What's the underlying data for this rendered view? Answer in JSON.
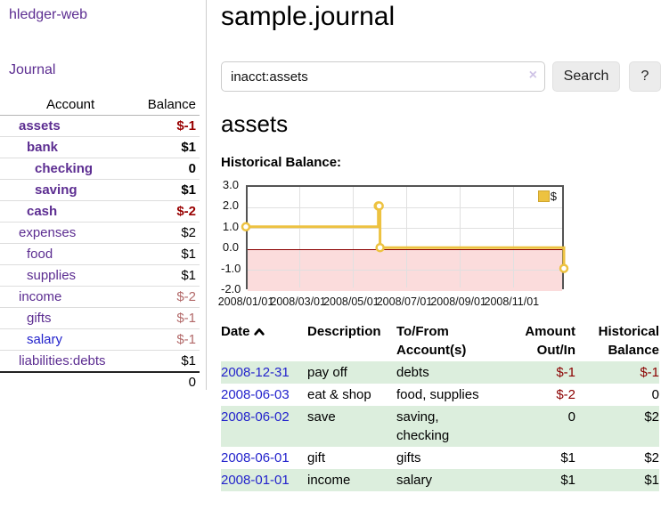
{
  "app": {
    "brand": "hledger-web"
  },
  "sidebar": {
    "journal_label": "Journal",
    "table": {
      "account_header": "Account",
      "balance_header": "Balance",
      "accounts": [
        {
          "name": "assets",
          "level": 1,
          "bold": true,
          "balance": "$-1",
          "balance_style": "neg-strong"
        },
        {
          "name": "bank",
          "level": 2,
          "bold": true,
          "balance": "$1",
          "balance_style": "pos"
        },
        {
          "name": "checking",
          "level": 3,
          "bold": true,
          "balance": "0",
          "balance_style": "pos"
        },
        {
          "name": "saving",
          "level": 3,
          "bold": true,
          "balance": "$1",
          "balance_style": "pos"
        },
        {
          "name": "cash",
          "level": 2,
          "bold": true,
          "balance": "$-2",
          "balance_style": "neg-strong"
        },
        {
          "name": "expenses",
          "level": 1,
          "bold": false,
          "balance": "$2",
          "balance_style": "pos"
        },
        {
          "name": "food",
          "level": 2,
          "bold": false,
          "balance": "$1",
          "balance_style": "pos"
        },
        {
          "name": "supplies",
          "level": 2,
          "bold": false,
          "balance": "$1",
          "balance_style": "pos"
        },
        {
          "name": "income",
          "level": 1,
          "bold": false,
          "balance": "$-2",
          "balance_style": "neg-soft"
        },
        {
          "name": "gifts",
          "level": 2,
          "bold": false,
          "balance": "$-1",
          "balance_style": "neg-soft"
        },
        {
          "name": "salary",
          "level": 2,
          "bold": false,
          "balance": "$-1",
          "balance_style": "neg-soft",
          "link_color": "blue"
        },
        {
          "name": "liabilities:debts",
          "level": 1,
          "bold": false,
          "balance": "$1",
          "balance_style": "pos"
        }
      ],
      "total": "0"
    }
  },
  "header": {
    "title": "sample.journal"
  },
  "search": {
    "value": "inacct:assets",
    "clear_icon": "×",
    "button": "Search",
    "help_button": "?"
  },
  "register": {
    "heading": "assets",
    "chart_label": "Historical Balance:",
    "table": {
      "headers": {
        "date": "Date",
        "description": "Description",
        "accounts": "To/From Account(s)",
        "amount": "Amount Out/In",
        "balance": "Historical Balance"
      },
      "rows": [
        {
          "date": "2008-12-31",
          "description": "pay off",
          "accounts": "debts",
          "amount": "$-1",
          "amount_neg": true,
          "balance": "$-1",
          "balance_neg": true
        },
        {
          "date": "2008-06-03",
          "description": "eat & shop",
          "accounts": "food, supplies",
          "amount": "$-2",
          "amount_neg": true,
          "balance": "0",
          "balance_neg": false
        },
        {
          "date": "2008-06-02",
          "description": "save",
          "accounts": "saving, checking",
          "amount": "0",
          "amount_neg": false,
          "balance": "$2",
          "balance_neg": false
        },
        {
          "date": "2008-06-01",
          "description": "gift",
          "accounts": "gifts",
          "amount": "$1",
          "amount_neg": false,
          "balance": "$2",
          "balance_neg": false
        },
        {
          "date": "2008-01-01",
          "description": "income",
          "accounts": "salary",
          "amount": "$1",
          "amount_neg": false,
          "balance": "$1",
          "balance_neg": false
        }
      ]
    }
  },
  "chart_data": {
    "type": "line",
    "title": "Historical Balance",
    "step": true,
    "legend": [
      {
        "label": "$",
        "color": "#edc240"
      }
    ],
    "legend_position": "top-right",
    "grid": true,
    "x_range": [
      "2008-01-01",
      "2008-12-31"
    ],
    "x_ticks": [
      "2008/01/01",
      "2008/03/01",
      "2008/05/01",
      "2008/07/01",
      "2008/09/01",
      "2008/11/01"
    ],
    "y_ticks": [
      3.0,
      2.0,
      1.0,
      0.0,
      -1.0,
      -2.0
    ],
    "ylim": [
      -2,
      3
    ],
    "points": [
      [
        "2008-01-01",
        1
      ],
      [
        "2008-06-01",
        2
      ],
      [
        "2008-06-02",
        2
      ],
      [
        "2008-06-03",
        0
      ],
      [
        "2008-12-31",
        -1
      ]
    ],
    "colors": {
      "line": "#edc240",
      "marker_fill": "#ffffff",
      "negative_zone": "#fbdcdc",
      "zero_line": "#8b0000",
      "grid": "#e0e0e0",
      "border": "#545454"
    }
  }
}
